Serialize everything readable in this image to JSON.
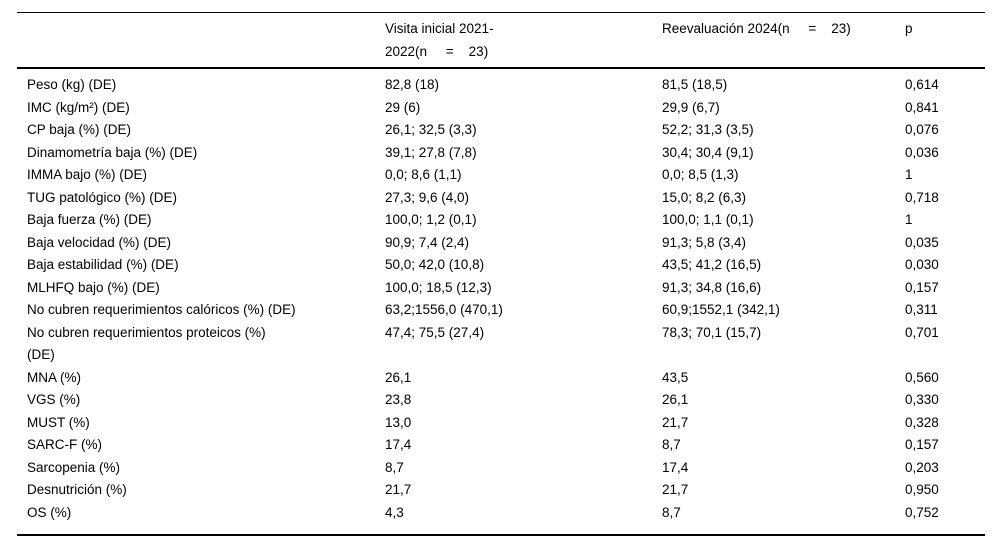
{
  "table": {
    "columns": [
      {
        "label": ""
      },
      {
        "label": "Visita inicial 2021-\n2022(n     =    23)"
      },
      {
        "label": "Reevaluación 2024(n     =    23)"
      },
      {
        "label": "p"
      }
    ],
    "rows": [
      {
        "label": "Peso (kg) (DE)",
        "visita_inicial": "82,8 (18)",
        "reevaluacion": "81,5 (18,5)",
        "p": "0,614"
      },
      {
        "label": "IMC (kg/m²) (DE)",
        "visita_inicial": "29 (6)",
        "reevaluacion": "29,9 (6,7)",
        "p": "0,841"
      },
      {
        "label": "CP baja (%) (DE)",
        "visita_inicial": "26,1; 32,5 (3,3)",
        "reevaluacion": "52,2; 31,3 (3,5)",
        "p": "0,076"
      },
      {
        "label": "Dinamometría baja (%) (DE)",
        "visita_inicial": "39,1; 27,8 (7,8)",
        "reevaluacion": "30,4; 30,4 (9,1)",
        "p": "0,036"
      },
      {
        "label": "IMMA bajo (%) (DE)",
        "visita_inicial": "0,0; 8,6 (1,1)",
        "reevaluacion": "0,0; 8,5 (1,3)",
        "p": "1"
      },
      {
        "label": "TUG patológico (%) (DE)",
        "visita_inicial": "27,3; 9,6 (4,0)",
        "reevaluacion": "15,0; 8,2 (6,3)",
        "p": "0,718"
      },
      {
        "label": "Baja fuerza (%) (DE)",
        "visita_inicial": "100,0; 1,2 (0,1)",
        "reevaluacion": "100,0; 1,1 (0,1)",
        "p": "1"
      },
      {
        "label": "Baja velocidad (%) (DE)",
        "visita_inicial": "90,9; 7,4 (2,4)",
        "reevaluacion": "91,3; 5,8 (3,4)",
        "p": "0,035"
      },
      {
        "label": "Baja estabilidad (%) (DE)",
        "visita_inicial": "50,0; 42,0 (10,8)",
        "reevaluacion": "43,5; 41,2 (16,5)",
        "p": "0,030"
      },
      {
        "label": "MLHFQ bajo (%) (DE)",
        "visita_inicial": "100,0; 18,5 (12,3)",
        "reevaluacion": "91,3; 34,8 (16,6)",
        "p": "0,157"
      },
      {
        "label": "No cubren requerimientos calóricos (%) (DE)",
        "visita_inicial": "63,2;1556,0 (470,1)",
        "reevaluacion": "60,9;1552,1 (342,1)",
        "p": "0,311"
      },
      {
        "label": "No cubren requerimientos proteicos (%)\n(DE)",
        "visita_inicial": "47,4; 75,5 (27,4)",
        "reevaluacion": "78,3; 70,1 (15,7)",
        "p": "0,701"
      },
      {
        "label": "MNA (%)",
        "visita_inicial": "26,1",
        "reevaluacion": "43,5",
        "p": "0,560"
      },
      {
        "label": "VGS (%)",
        "visita_inicial": "23,8",
        "reevaluacion": "26,1",
        "p": "0,330"
      },
      {
        "label": "MUST (%)",
        "visita_inicial": "13,0",
        "reevaluacion": "21,7",
        "p": "0,328"
      },
      {
        "label": "SARC-F (%)",
        "visita_inicial": "17,4",
        "reevaluacion": "8,7",
        "p": "0,157"
      },
      {
        "label": "Sarcopenia (%)",
        "visita_inicial": "8,7",
        "reevaluacion": "17,4",
        "p": "0,203"
      },
      {
        "label": "Desnutrición (%)",
        "visita_inicial": "21,7",
        "reevaluacion": "21,7",
        "p": "0,950"
      },
      {
        "label": "OS (%)",
        "visita_inicial": "4,3",
        "reevaluacion": "8,7",
        "p": "0,752"
      }
    ]
  }
}
